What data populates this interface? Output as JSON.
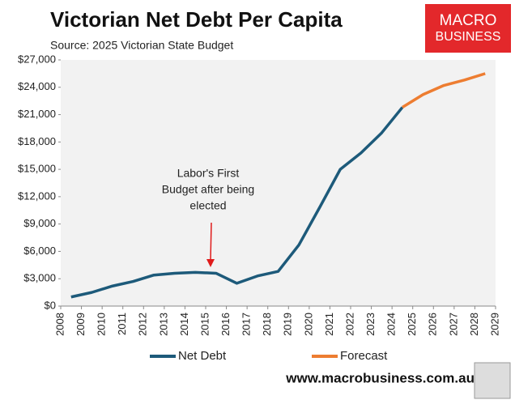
{
  "chart_data": {
    "type": "line",
    "title": "Victorian Net Debt Per Capita",
    "subtitle": "Source: 2025 Victorian State Budget",
    "x": [
      2008.5,
      2009.5,
      2010.5,
      2011.5,
      2012.5,
      2013.5,
      2014.5,
      2015.5,
      2016.5,
      2017.5,
      2018.5,
      2019.5,
      2020.5,
      2021.5,
      2022.5,
      2023.5,
      2024.5,
      2025.5,
      2026.5,
      2027.5,
      2028.5
    ],
    "series": [
      {
        "name": "Net Debt",
        "color": "#1d5a7a",
        "values": [
          1000,
          1500,
          2200,
          2700,
          3400,
          3600,
          3700,
          3600,
          2500,
          3300,
          3800,
          6700,
          10800,
          15000,
          16800,
          19000,
          21800,
          null,
          null,
          null,
          null
        ]
      },
      {
        "name": "Forecast",
        "color": "#ed7d31",
        "values": [
          null,
          null,
          null,
          null,
          null,
          null,
          null,
          null,
          null,
          null,
          null,
          null,
          null,
          null,
          null,
          null,
          21800,
          23200,
          24200,
          24800,
          25500
        ]
      }
    ],
    "xlim": [
      2008,
      2029
    ],
    "xticks": [
      2008,
      2009,
      2010,
      2011,
      2012,
      2013,
      2014,
      2015,
      2016,
      2017,
      2018,
      2019,
      2020,
      2021,
      2022,
      2023,
      2024,
      2025,
      2026,
      2027,
      2028,
      2029
    ],
    "ylim": [
      0,
      27000
    ],
    "yticks": [
      {
        "value": 0,
        "label": "$0"
      },
      {
        "value": 3000,
        "label": "$3,000"
      },
      {
        "value": 6000,
        "label": "$6,000"
      },
      {
        "value": 9000,
        "label": "$9,000"
      },
      {
        "value": 12000,
        "label": "$12,000"
      },
      {
        "value": 15000,
        "label": "$15,000"
      },
      {
        "value": 18000,
        "label": "$18,000"
      },
      {
        "value": 21000,
        "label": "$21,000"
      },
      {
        "value": 24000,
        "label": "$24,000"
      },
      {
        "value": 27000,
        "label": "$27,000"
      }
    ],
    "grid": false,
    "annotation": [
      "Labor's First",
      "Budget after being",
      "elected"
    ]
  },
  "logo": [
    "MACRO",
    "BUSINESS"
  ],
  "website": "www.macrobusiness.com.au"
}
